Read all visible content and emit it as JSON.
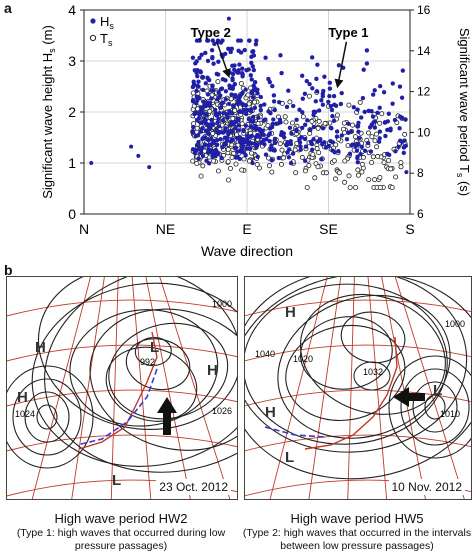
{
  "panel_labels": {
    "a": "a",
    "b": "b"
  },
  "chart_data": {
    "type": "scatter",
    "xlabel": "Wave direction",
    "ylabel_left": "Significant wave height H_s (m)",
    "ylabel_right": "Significant wave period T_s (s)",
    "x_categories": [
      "N",
      "NE",
      "E",
      "SE",
      "S"
    ],
    "x_range_deg": [
      0,
      180
    ],
    "ylim_left": [
      0,
      4
    ],
    "yticks_left": [
      "0",
      "1",
      "2",
      "3",
      "4"
    ],
    "ylim_right": [
      6,
      16
    ],
    "yticks_right": [
      "6",
      "8",
      "10",
      "12",
      "14",
      "16"
    ],
    "grid": true,
    "legend_position": "top-left",
    "series": [
      {
        "name": "H_s",
        "axis": "left",
        "marker": "filled-circle",
        "color": "#1f1fa8"
      },
      {
        "name": "T_s",
        "axis": "right",
        "marker": "open-circle",
        "color": "#222222"
      }
    ],
    "legend": {
      "hs_label": "H",
      "hs_sub": "s",
      "ts_label": "T",
      "ts_sub": "s"
    },
    "annotations": [
      {
        "text": "Type 2",
        "x_deg": 70,
        "y_m": 3.2,
        "arrow_to_deg": 80,
        "arrow_to_m": 2.7
      },
      {
        "text": "Type 1",
        "x_deg": 146,
        "y_m": 3.2,
        "arrow_to_deg": 140,
        "arrow_to_m": 2.5
      }
    ],
    "outlier_points_hs": [
      {
        "deg": 4,
        "m": 1.0
      },
      {
        "deg": 26,
        "m": 1.32
      },
      {
        "deg": 30,
        "m": 1.14
      },
      {
        "deg": 36,
        "m": 0.92
      },
      {
        "deg": 80,
        "m": 3.83
      },
      {
        "deg": 178,
        "m": 0.82
      }
    ]
  },
  "maps": [
    {
      "date": "23 Oct. 2012",
      "title": "High wave period HW2",
      "caption": "(Type 1: high waves  that occurred during low pressure passages)",
      "pressure_labels": [
        "992",
        "1024",
        "1026",
        "1000"
      ],
      "symbols": [
        "H",
        "L",
        "H",
        "H",
        "L"
      ]
    },
    {
      "date": "10 Nov. 2012",
      "title": "High wave period HW5",
      "caption": "(Type 2: high waves that occurred in the intervals between low pressure passages)",
      "pressure_labels": [
        "1000",
        "1020",
        "1032",
        "1010",
        "1040"
      ],
      "symbols": [
        "H",
        "H",
        "L",
        "L"
      ]
    }
  ]
}
